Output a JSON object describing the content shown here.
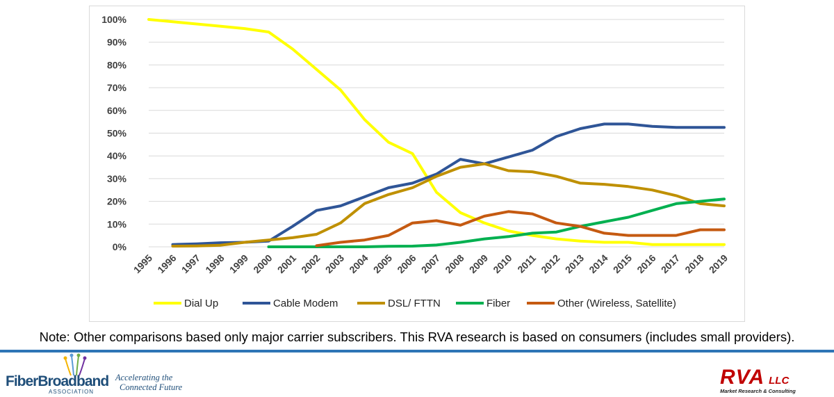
{
  "chart_data": {
    "type": "line",
    "title": "",
    "xlabel": "",
    "ylabel": "",
    "categories": [
      "1995",
      "1996",
      "1997",
      "1998",
      "1999",
      "2000",
      "2001",
      "2002",
      "2003",
      "2004",
      "2005",
      "2006",
      "2007",
      "2008",
      "2009",
      "2010",
      "2011",
      "2012",
      "2013",
      "2014",
      "2015",
      "2016",
      "2017",
      "2018",
      "2019"
    ],
    "y_ticks": [
      "0%",
      "10%",
      "20%",
      "30%",
      "40%",
      "50%",
      "60%",
      "70%",
      "80%",
      "90%",
      "100%"
    ],
    "ylim": [
      0,
      100
    ],
    "grid": true,
    "legend_position": "bottom",
    "series": [
      {
        "name": "Dial Up",
        "color": "#ffff00",
        "values": [
          100,
          99,
          98,
          97,
          96,
          94.5,
          87,
          78,
          69,
          56,
          46,
          41,
          24,
          15,
          10.5,
          7,
          5,
          3.5,
          2.5,
          2,
          2,
          1,
          1,
          1,
          1
        ]
      },
      {
        "name": "Cable Modem",
        "color": "#2f5597",
        "values": [
          null,
          1,
          1.3,
          1.8,
          2,
          2.5,
          9,
          16,
          18,
          22,
          26,
          28,
          32,
          38.5,
          36.5,
          39.5,
          42.5,
          48.5,
          52,
          54,
          54,
          53,
          52.5,
          52.5,
          52.5
        ]
      },
      {
        "name": "DSL/ FTTN",
        "color": "#bf9000",
        "values": [
          null,
          0.3,
          0.4,
          0.7,
          2,
          3,
          4,
          5.5,
          10.5,
          19,
          23,
          26,
          31,
          35,
          36.5,
          33.5,
          33,
          31,
          28,
          27.5,
          26.5,
          25,
          22.5,
          19,
          18
        ]
      },
      {
        "name": "Fiber",
        "color": "#00b050",
        "values": [
          null,
          null,
          null,
          null,
          null,
          0,
          0,
          0,
          0,
          0,
          0.2,
          0.3,
          0.8,
          2,
          3.5,
          4.5,
          6,
          6.5,
          9,
          11,
          13,
          16,
          19,
          20,
          21
        ]
      },
      {
        "name": "Other (Wireless, Satellite)",
        "color": "#c55a11",
        "values": [
          null,
          null,
          null,
          null,
          null,
          null,
          null,
          0.5,
          2,
          3,
          5,
          10.5,
          11.5,
          9.5,
          13.5,
          15.5,
          14.5,
          10.5,
          9,
          6,
          5,
          5,
          5,
          7.5,
          7.5
        ]
      }
    ]
  },
  "note": "Note: Other comparisons based only major carrier subscribers. This RVA research is based on consumers (includes small providers).",
  "footer": {
    "fba_name": "FiberBroadband",
    "fba_sub": "ASSOCIATION",
    "fba_tagline_1": "Accelerating the",
    "fba_tagline_2": "Connected Future",
    "rva_name": "RVA",
    "rva_llc": "LLC",
    "rva_sub": "Market Research & Consulting",
    "divider_color": "#2e75b6"
  }
}
